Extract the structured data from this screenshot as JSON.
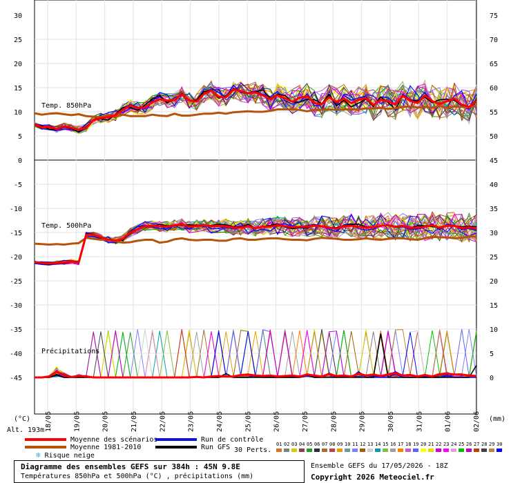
{
  "chart_data": {
    "type": "line",
    "left_axis_unit": "(°C)",
    "right_axis_unit": "(mm)",
    "left_ticks": [
      "30",
      "25",
      "20",
      "15",
      "10",
      "5",
      "0",
      "-5",
      "-10",
      "-15",
      "-20",
      "-25",
      "-30",
      "-35",
      "-40",
      "-45"
    ],
    "right_ticks": [
      "75",
      "70",
      "65",
      "60",
      "55",
      "50",
      "45",
      "40",
      "35",
      "30",
      "25",
      "20",
      "15",
      "10",
      "5",
      "0"
    ],
    "date_labels": [
      "18/05",
      "19/05",
      "20/05",
      "21/05",
      "22/05",
      "23/05",
      "24/05",
      "25/05",
      "26/05",
      "27/05",
      "28/05",
      "29/05",
      "30/05",
      "31/05",
      "01/06",
      "02/06"
    ],
    "section_labels": {
      "t850": "Temp. 850hPa",
      "t500": "Temp. 500hPa",
      "precip": "Précipitations"
    },
    "altitude": "Alt. 193m",
    "ylim_upper": [
      0,
      30
    ],
    "ylim_lower": [
      -45,
      0
    ],
    "precip_ylim": [
      0,
      45
    ],
    "grid": true,
    "series": [
      {
        "name": "Moyenne des scénarios",
        "role": "t850_mean",
        "color": "#ff0000",
        "values": [
          7.4,
          6.8,
          6.9,
          6.4,
          7.0,
          6.7,
          6.3,
          6.6,
          8.3,
          8.7,
          8.9,
          9.3,
          10.4,
          11.3,
          10.8,
          10.9,
          12.0,
          12.6,
          12.3,
          12.4,
          13.6,
          12.4,
          12.1,
          13.7,
          14.4,
          13.1,
          13.0,
          14.6,
          14.3,
          13.8,
          14.0,
          13.4,
          12.6,
          13.4,
          12.8,
          12.1,
          12.9,
          13.2,
          11.8,
          11.6,
          13.0,
          12.0,
          12.7,
          11.8,
          12.5,
          12.8,
          11.4,
          12.5,
          12.2,
          11.5,
          13.3,
          12.3,
          11.8,
          13.4,
          12.2,
          11.6,
          12.2,
          12.7,
          11.5,
          11.0,
          12.2
        ]
      },
      {
        "name": "Moyenne 1981-2010",
        "role": "t850_clim",
        "color": "#b45309",
        "values": [
          9.7,
          9.4,
          9.6,
          9.7,
          9.5,
          9.3,
          9.5,
          9.1,
          9.0,
          8.9,
          9.3,
          9.0,
          9.4,
          9.1,
          9.1,
          9.1,
          9.4,
          9.2,
          9.1,
          9.6,
          9.2,
          9.2,
          9.4,
          9.6,
          9.6,
          9.8,
          9.6,
          9.9,
          10.0,
          10.1,
          10.0,
          10.0,
          10.2,
          10.5,
          10.5,
          10.5,
          10.4,
          10.1,
          10.4,
          10.4,
          10.5,
          10.4,
          10.5,
          10.5,
          10.5,
          10.7,
          10.7,
          10.8,
          10.6,
          10.7,
          11.0,
          11.1,
          10.9,
          11.0,
          10.8,
          11.2,
          10.8,
          11.1,
          11.0,
          10.9,
          11.3
        ]
      },
      {
        "name": "Run de contrôle",
        "role": "t850_control",
        "color": "#1010e0",
        "values": [
          7.3,
          6.5,
          6.3,
          6.1,
          6.8,
          6.5,
          5.8,
          6.5,
          8.3,
          8.7,
          8.8,
          9.1,
          10.8,
          11.5,
          11.0,
          10.6,
          12.4,
          13.1,
          11.8,
          12.9,
          13.4,
          12.3,
          12.3,
          13.6,
          14.8,
          14.0,
          13.0,
          15.5,
          14.0,
          13.7,
          14.3,
          13.6,
          13.1,
          14.2,
          12.3,
          11.6,
          12.0,
          13.7,
          11.2,
          11.5,
          13.3,
          11.5,
          13.4,
          12.4,
          12.9,
          13.2,
          11.3,
          13.0,
          13.0,
          11.4,
          13.6,
          12.5,
          12.3,
          14.0,
          12.1,
          11.6,
          12.3,
          12.4,
          11.2,
          10.5,
          12.1
        ]
      },
      {
        "name": "Run GFS",
        "role": "t850_gfs",
        "color": "#000000",
        "values": [
          7.2,
          7.1,
          6.4,
          6.3,
          6.9,
          6.5,
          5.8,
          6.9,
          8.3,
          8.5,
          8.3,
          9.5,
          10.9,
          10.9,
          10.3,
          11.4,
          12.7,
          13.4,
          11.9,
          12.5,
          13.8,
          12.3,
          12.4,
          14.2,
          14.4,
          12.8,
          13.3,
          14.8,
          14.4,
          13.9,
          14.2,
          14.5,
          12.8,
          13.6,
          13.4,
          12.0,
          12.0,
          12.6,
          12.5,
          11.7,
          13.6,
          11.2,
          12.4,
          11.0,
          11.8,
          12.6,
          11.1,
          13.1,
          11.9,
          10.5,
          13.5,
          12.4,
          12.2,
          13.0,
          11.9,
          12.5,
          12.6,
          12.4,
          11.5,
          10.9,
          12.5
        ]
      },
      {
        "name": "Moyenne des scénarios",
        "role": "t500_mean",
        "color": "#ff0000",
        "values": [
          -21.1,
          -21.3,
          -21.4,
          -21.3,
          -21.2,
          -21.0,
          -21.2,
          -15.5,
          -15.4,
          -16.0,
          -16.5,
          -16.7,
          -16.3,
          -15.0,
          -14.3,
          -13.7,
          -13.6,
          -13.7,
          -13.8,
          -13.5,
          -13.3,
          -13.8,
          -13.7,
          -13.5,
          -13.7,
          -13.6,
          -13.7,
          -14.0,
          -14.0,
          -13.7,
          -14.1,
          -13.8,
          -13.8,
          -13.5,
          -13.7,
          -13.9,
          -13.8,
          -13.8,
          -13.6,
          -13.7,
          -14.0,
          -14.2,
          -13.7,
          -13.6,
          -13.8,
          -14.0,
          -13.9,
          -13.6,
          -13.5,
          -13.8,
          -13.6,
          -14.0,
          -14.0,
          -13.8,
          -13.5,
          -14.0,
          -13.6,
          -13.6,
          -14.1,
          -13.9,
          -14.2
        ]
      },
      {
        "name": "Moyenne 1981-2010",
        "role": "t500_clim",
        "color": "#b45309",
        "values": [
          -17.3,
          -17.4,
          -17.5,
          -17.4,
          -17.5,
          -17.3,
          -17.2,
          -16.1,
          -16.3,
          -16.5,
          -16.5,
          -16.8,
          -17.1,
          -17.0,
          -16.7,
          -16.5,
          -16.5,
          -17.1,
          -16.9,
          -16.4,
          -16.2,
          -16.5,
          -16.6,
          -16.5,
          -16.5,
          -16.7,
          -16.7,
          -16.3,
          -16.2,
          -16.5,
          -16.5,
          -16.3,
          -16.2,
          -16.2,
          -16.4,
          -16.5,
          -16.5,
          -16.6,
          -16.3,
          -16.1,
          -16.2,
          -16.3,
          -16.5,
          -16.5,
          -16.4,
          -16.2,
          -16.4,
          -16.5,
          -16.3,
          -16.2,
          -16.2,
          -16.4,
          -16.5,
          -16.2,
          -15.9,
          -16.0,
          -16.0,
          -16.2,
          -16.1,
          -15.8,
          -15.9
        ]
      },
      {
        "name": "Run de contrôle",
        "role": "t500_control",
        "color": "#1010e0",
        "values": [
          -21.4,
          -21.6,
          -21.7,
          -21.5,
          -21.4,
          -21.0,
          -21.4,
          -15.0,
          -15.3,
          -16.4,
          -17.0,
          -17.1,
          -16.4,
          -14.7,
          -13.8,
          -13.5,
          -13.8,
          -14.2,
          -14.2,
          -13.4,
          -13.2,
          -14.3,
          -13.6,
          -13.3,
          -14.2,
          -14.2,
          -13.8,
          -14.3,
          -14.0,
          -13.2,
          -14.7,
          -14.3,
          -14.7,
          -13.5,
          -13.2,
          -13.7,
          -13.8,
          -13.6,
          -13.3,
          -13.7,
          -14.3,
          -14.8,
          -13.4,
          -13.2,
          -14.2,
          -14.5,
          -14.3,
          -13.5,
          -13.4,
          -14.0,
          -13.8,
          -14.3,
          -14.3,
          -13.9,
          -13.2,
          -14.4,
          -13.3,
          -13.5,
          -14.4,
          -14.1,
          -14.6
        ]
      },
      {
        "name": "Run GFS",
        "role": "t500_gfs",
        "color": "#000000",
        "values": [
          -21.0,
          -21.4,
          -21.6,
          -21.3,
          -21.4,
          -21.1,
          -21.0,
          -15.3,
          -15.3,
          -16.2,
          -16.4,
          -16.6,
          -16.6,
          -15.2,
          -14.3,
          -13.8,
          -13.8,
          -13.3,
          -13.6,
          -13.6,
          -13.5,
          -13.4,
          -13.5,
          -13.7,
          -13.5,
          -13.3,
          -13.4,
          -13.8,
          -13.8,
          -13.3,
          -14.1,
          -13.8,
          -13.5,
          -13.2,
          -13.9,
          -14.2,
          -14.0,
          -14.1,
          -13.4,
          -13.7,
          -13.9,
          -14.0,
          -13.6,
          -13.3,
          -13.3,
          -13.8,
          -13.9,
          -13.6,
          -13.5,
          -13.7,
          -13.7,
          -14.0,
          -13.6,
          -13.6,
          -13.8,
          -13.9,
          -13.6,
          -13.6,
          -13.8,
          -13.7,
          -13.8
        ]
      },
      {
        "name": "Moyenne des scénarios",
        "role": "precip_mean",
        "color": "#ff0000",
        "values": [
          0,
          0,
          0.2,
          1.2,
          0.5,
          0.1,
          0.3,
          0.2,
          0,
          0,
          0,
          0,
          0,
          0,
          0,
          0,
          0,
          0,
          0,
          0,
          0,
          0,
          0.1,
          0,
          0.2,
          0.3,
          0.2,
          0.2,
          0.5,
          0.6,
          0.4,
          0.3,
          0.4,
          0.2,
          0.3,
          0.4,
          0.2,
          0.6,
          0.4,
          0.2,
          0.7,
          0.3,
          0.4,
          0.2,
          0.8,
          0.4,
          0.6,
          0.3,
          0.6,
          0.9,
          0.4,
          0.5,
          0.2,
          0.5,
          0.2,
          0.7,
          0.8,
          0.6,
          0.6,
          0.4,
          0.3
        ]
      },
      {
        "name": "Run de contrôle",
        "role": "precip_control",
        "color": "#1010e0",
        "values": [
          0,
          0,
          0,
          0.4,
          0,
          0,
          0,
          0,
          0,
          0,
          0,
          0,
          0,
          0,
          0,
          0,
          0,
          0,
          0,
          0,
          0,
          0,
          0,
          0,
          0,
          0,
          0.3,
          0,
          0,
          0,
          0.5,
          0,
          0,
          0,
          0,
          0,
          0,
          0.3,
          0,
          0,
          0.6,
          0,
          0.4,
          0,
          1.2,
          0,
          0,
          0,
          0,
          0.8,
          0,
          0,
          0,
          0,
          0,
          0,
          0.5,
          0,
          0,
          0,
          0
        ]
      },
      {
        "name": "Run GFS",
        "role": "precip_gfs",
        "color": "#000000",
        "values": [
          0,
          0,
          0,
          0.6,
          0,
          0,
          0,
          0,
          0,
          0,
          0,
          0,
          0,
          0,
          0,
          0,
          0,
          0,
          0,
          0,
          0,
          0,
          0,
          0,
          0,
          0,
          0.8,
          0,
          0,
          0,
          0,
          0,
          0,
          0,
          0,
          0,
          0,
          0.5,
          0,
          0,
          0,
          0,
          0,
          0,
          0,
          0,
          0,
          9.0,
          0,
          0,
          0,
          0,
          0,
          0,
          0,
          0,
          0,
          0,
          0,
          0,
          2.5
        ]
      }
    ]
  },
  "legend": {
    "mean": "Moyenne des scénarios",
    "clim": "Moyenne 1981-2010",
    "snow": "Risque neige",
    "control": "Run de contrôle",
    "gfs": "Run GFS",
    "perts_label": "30 Perts.",
    "perts_numbers": [
      "01",
      "02",
      "03",
      "04",
      "05",
      "06",
      "07",
      "08",
      "09",
      "10",
      "11",
      "12",
      "13",
      "14",
      "15",
      "16",
      "17",
      "18",
      "19",
      "20",
      "21",
      "22",
      "23",
      "24",
      "25",
      "26",
      "27",
      "28",
      "29",
      "30"
    ],
    "perts_colors": [
      "#e07020",
      "#808080",
      "#d0d000",
      "#904040",
      "#20a020",
      "#303030",
      "#a07030",
      "#c04040",
      "#e0a000",
      "#60a0a0",
      "#8080ff",
      "#a06000",
      "#d0d0d0",
      "#00a0a0",
      "#80c040",
      "#a0a0a0",
      "#ff8000",
      "#c060c0",
      "#6060ff",
      "#ffff00",
      "#e0e000",
      "#d000d0",
      "#ff00ff",
      "#e0a0e0",
      "#00c000",
      "#c000c0",
      "#c04000",
      "#404040",
      "#c08040",
      "#0000ff"
    ]
  },
  "footer": {
    "title": "Diagramme des ensembles GEFS sur 384h : 45N 9.8E",
    "subtitle": "Températures 850hPa et 500hPa (°C) , précipitations (mm)",
    "ensemble": "Ensemble GEFS du 17/05/2026 - 18Z",
    "copyright": "Copyright 2026 Meteociel.fr"
  }
}
